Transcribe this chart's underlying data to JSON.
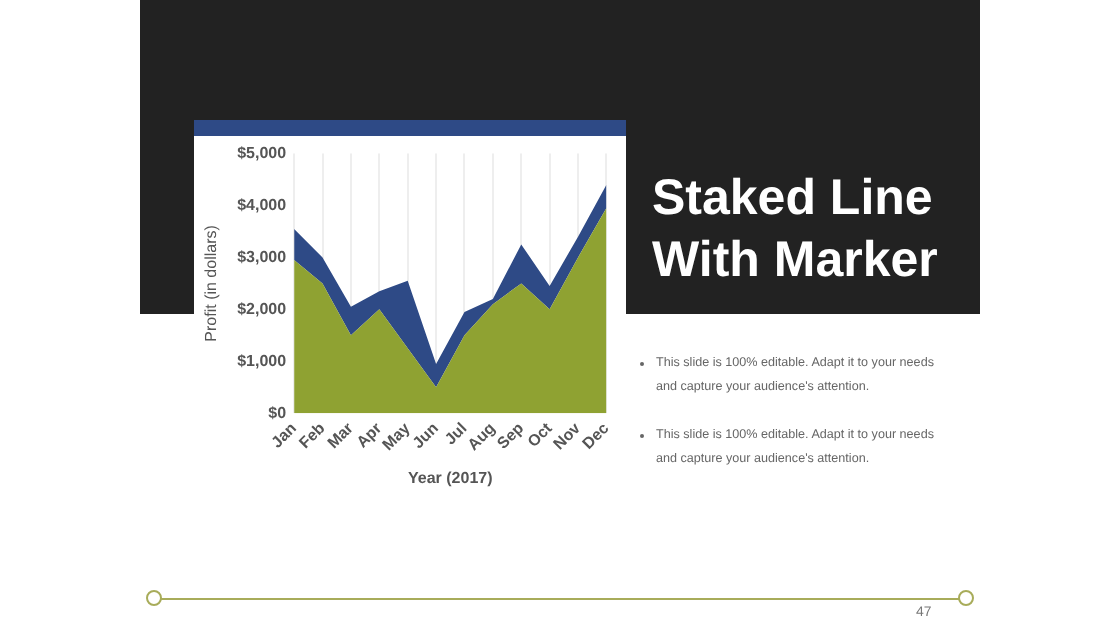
{
  "chart_data": {
    "type": "area",
    "title": "Staked Line With Marker",
    "xlabel": "Year (2017)",
    "ylabel": "Profit (in dollars)",
    "categories": [
      "Jan",
      "Feb",
      "Mar",
      "Apr",
      "May",
      "Jun",
      "Jul",
      "Aug",
      "Sep",
      "Oct",
      "Nov",
      "Dec"
    ],
    "stacked": true,
    "series": [
      {
        "color": "#8fa232",
        "values": [
          2950,
          2500,
          1500,
          2000,
          1250,
          500,
          1500,
          2100,
          2500,
          2000,
          3000,
          3950
        ]
      },
      {
        "color": "#2e4a86",
        "values": [
          600,
          500,
          550,
          350,
          1300,
          450,
          450,
          100,
          750,
          450,
          400,
          450
        ]
      }
    ],
    "ylim": [
      0,
      5000
    ],
    "yticks": [
      {
        "value": 0,
        "label": "$0"
      },
      {
        "value": 1000,
        "label": "$1,000"
      },
      {
        "value": 2000,
        "label": "$2,000"
      },
      {
        "value": 3000,
        "label": "$3,000"
      },
      {
        "value": 4000,
        "label": "$4,000"
      },
      {
        "value": 5000,
        "label": "$5,000"
      }
    ],
    "grid": "x",
    "legend": false,
    "annotations": [
      "This slide is 100% editable. Adapt it to your needs and capture your audience's attention.",
      "This slide is 100% editable. Adapt it to your needs and capture your audience's attention.",
      "47"
    ]
  }
}
